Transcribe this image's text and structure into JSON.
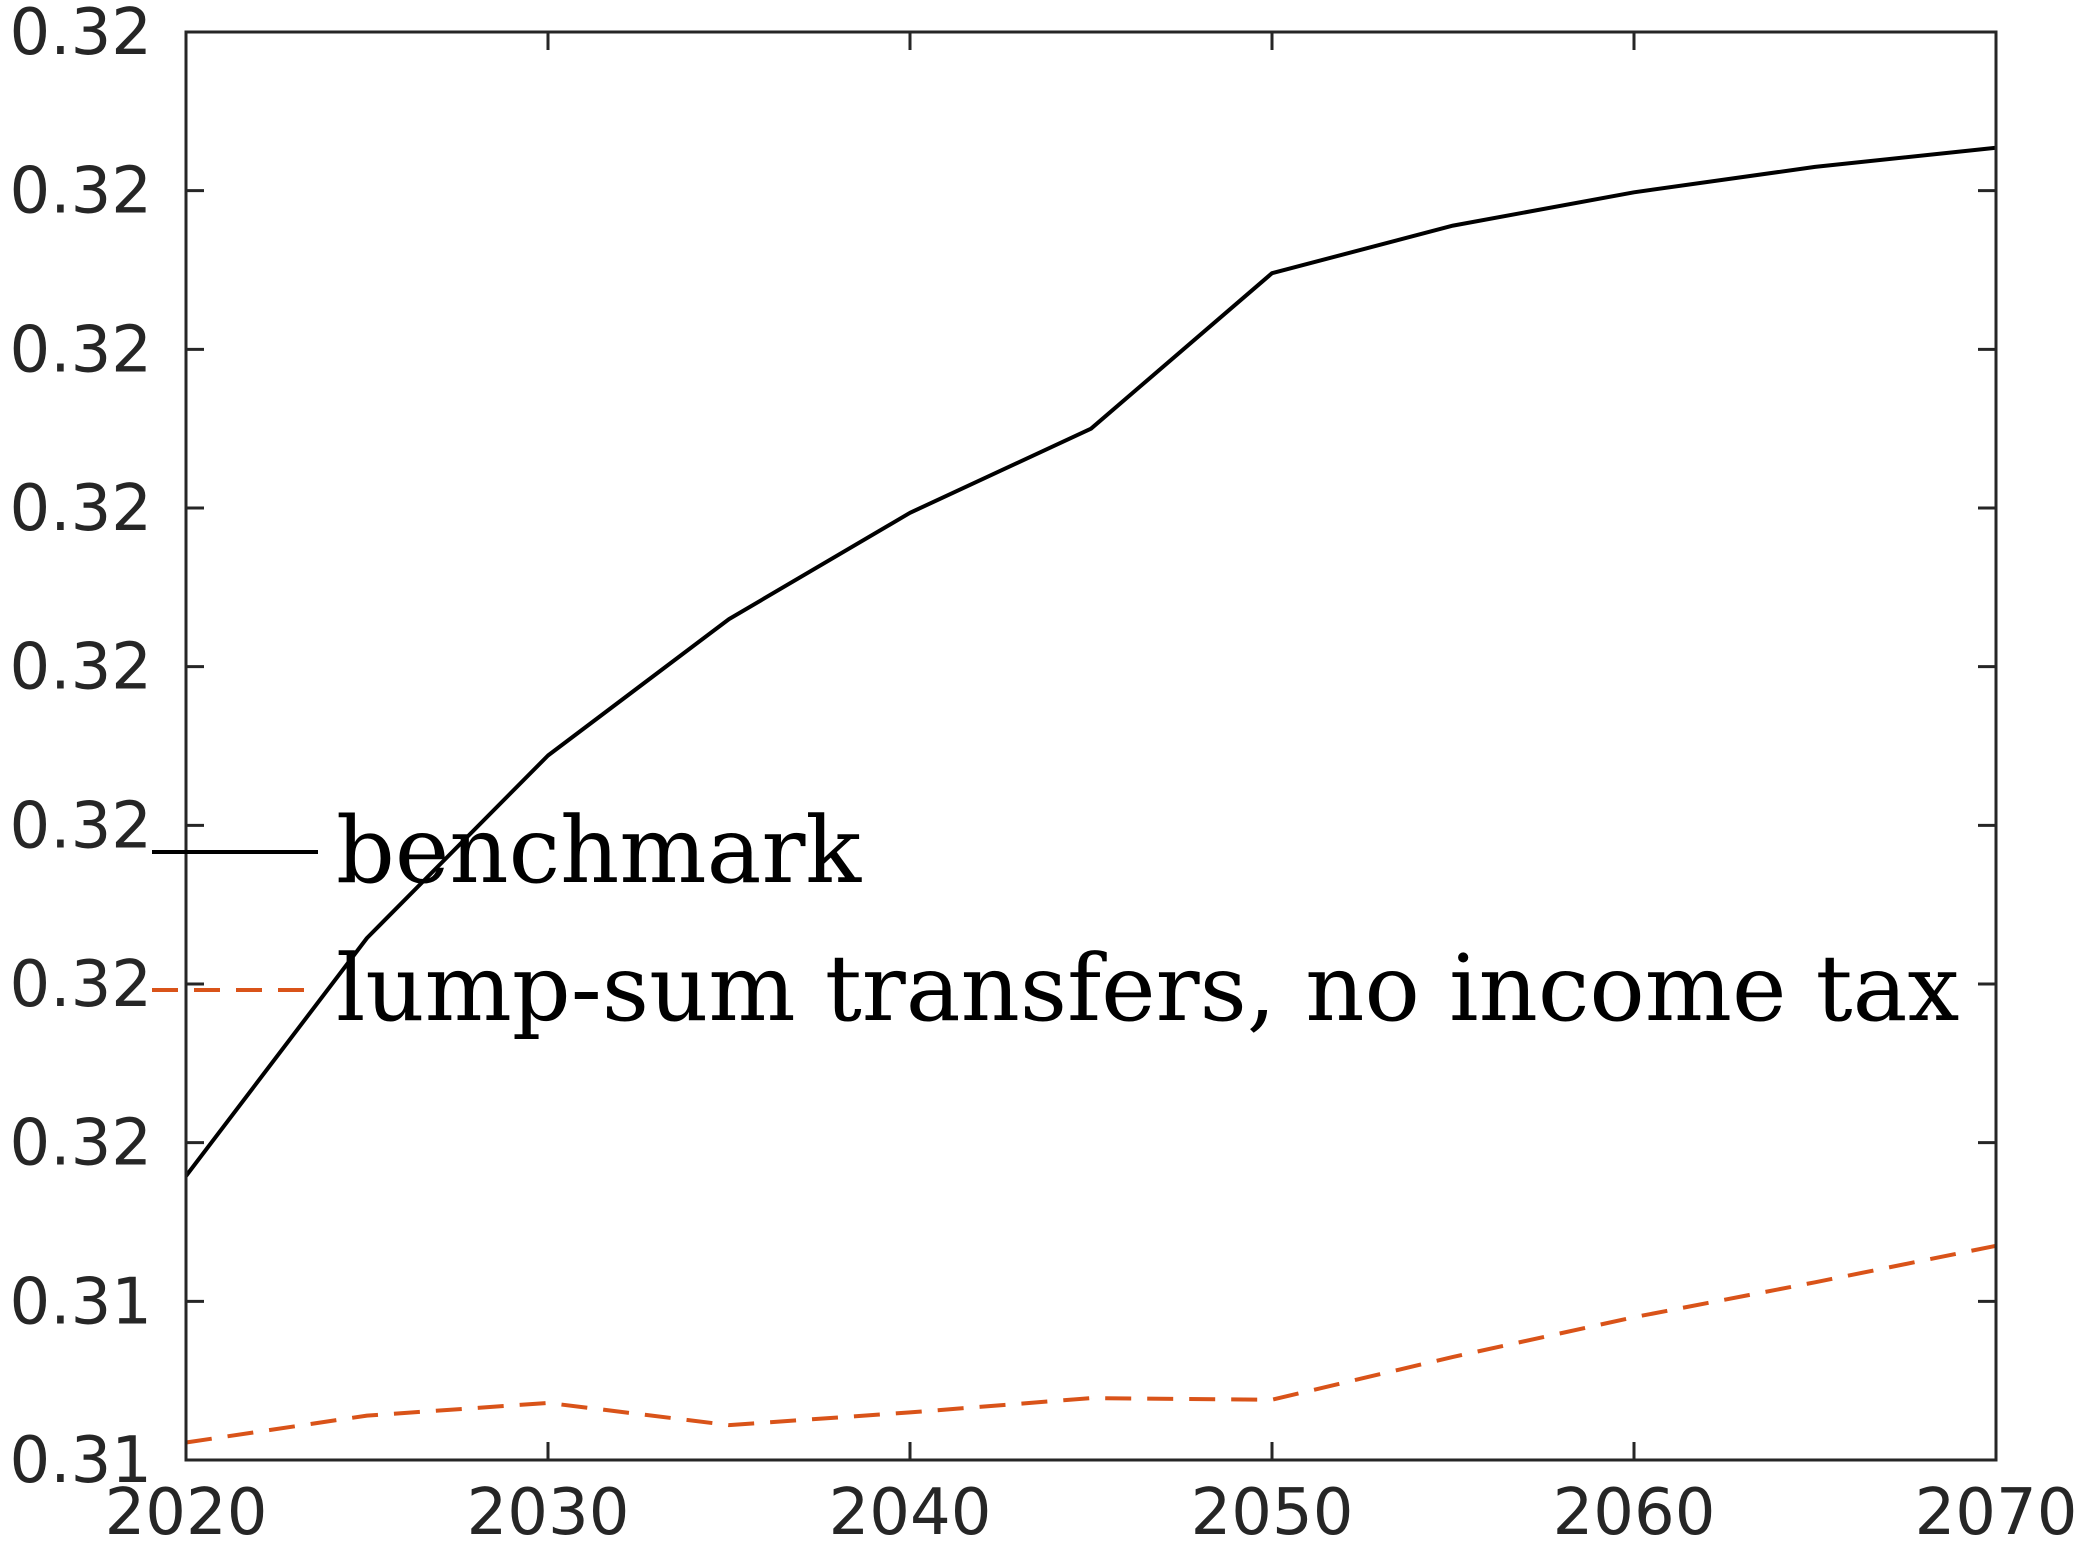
{
  "chart_data": {
    "type": "line",
    "title": "",
    "xlabel": "",
    "ylabel": "",
    "xlim": [
      2020,
      2070
    ],
    "ylim": [
      0.0,
      9.0
    ],
    "x_ticks": [
      2020,
      2030,
      2040,
      2050,
      2060,
      2070
    ],
    "x_tick_labels": [
      "2020",
      "2030",
      "2040",
      "2050",
      "2060",
      "2070"
    ],
    "y_ticks": [
      0,
      1,
      2,
      3,
      4,
      5,
      6,
      7,
      8,
      9
    ],
    "y_tick_labels": [
      "0.31",
      "0.31",
      "0.32",
      "0.32",
      "0.32",
      "0.32",
      "0.32",
      "0.32",
      "0.32",
      "0.32"
    ],
    "grid": false,
    "legend_placement": "center-left",
    "series": [
      {
        "name": "benchmark",
        "color": "#000000",
        "style": "solid",
        "x": [
          2020,
          2025,
          2030,
          2035,
          2040,
          2045,
          2050,
          2055,
          2060,
          2065,
          2070
        ],
        "y": [
          1.79,
          3.29,
          4.44,
          5.3,
          5.97,
          6.5,
          7.48,
          7.78,
          7.99,
          8.15,
          8.27
        ]
      },
      {
        "name": "lump-sum transfers, no income tax",
        "color": "#D95319",
        "style": "dashed",
        "x": [
          2020,
          2025,
          2030,
          2035,
          2040,
          2045,
          2050,
          2055,
          2060,
          2065,
          2070
        ],
        "y": [
          0.11,
          0.28,
          0.36,
          0.22,
          0.3,
          0.39,
          0.38,
          0.65,
          0.9,
          1.12,
          1.35
        ]
      }
    ]
  }
}
